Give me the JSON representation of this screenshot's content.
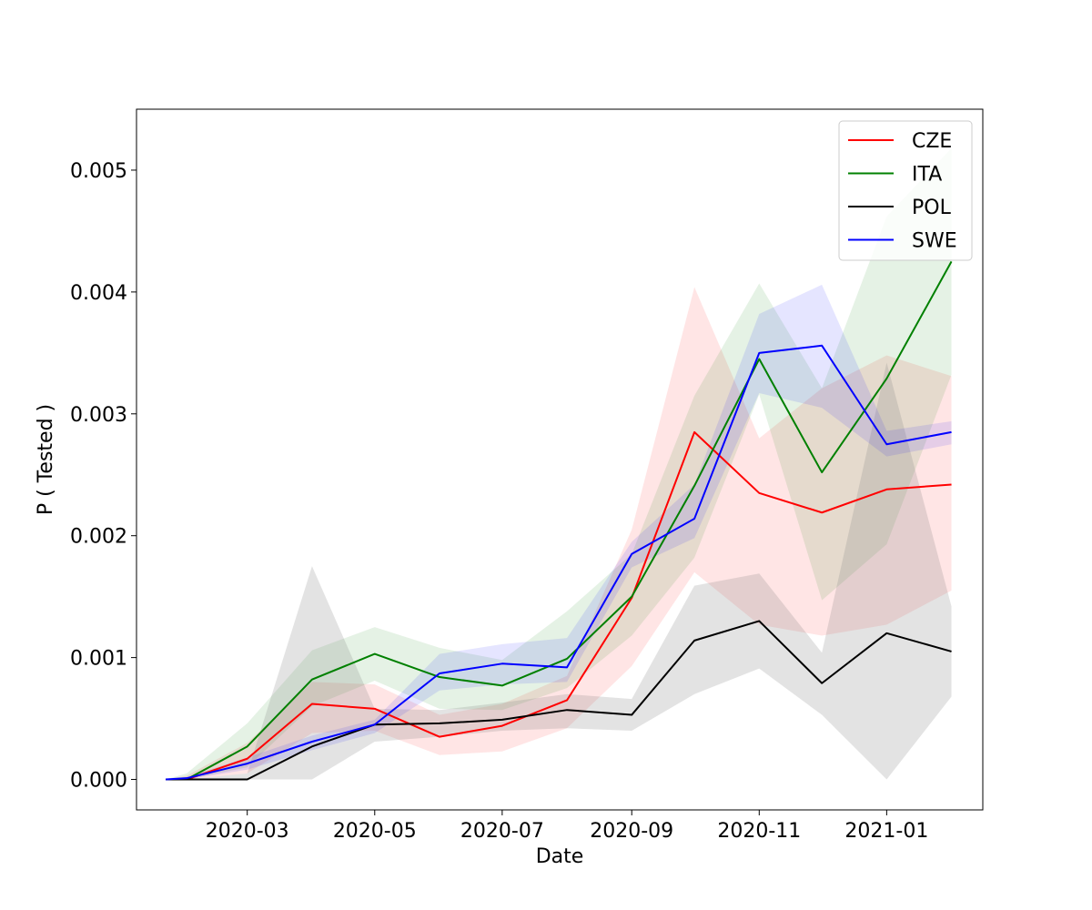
{
  "chart_data": {
    "type": "line",
    "title": "",
    "xlabel": "Date",
    "ylabel": "P ( Tested )",
    "x": [
      "2020-01-22",
      "2020-02-01",
      "2020-03-01",
      "2020-04-01",
      "2020-05-01",
      "2020-06-01",
      "2020-07-01",
      "2020-08-01",
      "2020-09-01",
      "2020-10-01",
      "2020-11-01",
      "2020-12-01",
      "2021-01-01",
      "2021-02-01"
    ],
    "x_ticks": [
      "2020-03",
      "2020-05",
      "2020-07",
      "2020-09",
      "2020-11",
      "2021-01"
    ],
    "y_ticks": [
      "0.000",
      "0.001",
      "0.002",
      "0.003",
      "0.004",
      "0.005"
    ],
    "ylim": [
      -0.00025,
      0.0055
    ],
    "legend_position": "top-right",
    "series": [
      {
        "name": "CZE",
        "color": "#ff0000",
        "band_color": "#ff0000",
        "values": [
          0.0,
          0.0,
          0.00017,
          0.00062,
          0.00058,
          0.00035,
          0.00044,
          0.00065,
          0.00149,
          0.00285,
          0.00235,
          0.00219,
          0.00238,
          0.00242
        ],
        "lower": [
          0.0,
          0.0,
          5e-05,
          0.00038,
          0.0004,
          0.0002,
          0.00023,
          0.00042,
          0.00093,
          0.0017,
          0.00127,
          0.00118,
          0.00127,
          0.00155
        ],
        "upper": [
          0.0,
          3e-05,
          0.0003,
          0.0008,
          0.00078,
          0.00053,
          0.00062,
          0.00085,
          0.00205,
          0.00404,
          0.0028,
          0.00321,
          0.00348,
          0.00331
        ]
      },
      {
        "name": "ITA",
        "color": "#008000",
        "band_color": "#008000",
        "values": [
          0.0,
          0.0,
          0.00027,
          0.00082,
          0.00103,
          0.00084,
          0.00077,
          0.00099,
          0.0015,
          0.00241,
          0.00345,
          0.00252,
          0.00329,
          0.00425
        ],
        "lower": [
          0.0,
          0.0,
          0.0001,
          0.0006,
          0.00081,
          0.00058,
          0.00057,
          0.00075,
          0.00118,
          0.00182,
          0.00316,
          0.00147,
          0.00193,
          0.00332
        ],
        "upper": [
          0.0,
          5e-05,
          0.00046,
          0.00106,
          0.00125,
          0.00108,
          0.00098,
          0.00138,
          0.00185,
          0.00315,
          0.00407,
          0.00321,
          0.00462,
          0.00518
        ]
      },
      {
        "name": "POL",
        "color": "#000000",
        "band_color": "#808080",
        "values": [
          0.0,
          0.0,
          0.0,
          0.00027,
          0.00045,
          0.00046,
          0.00049,
          0.00057,
          0.00053,
          0.00114,
          0.0013,
          0.00079,
          0.0012,
          0.00105
        ],
        "lower": [
          0.0,
          0.0,
          0.0,
          0.0,
          0.00031,
          0.00035,
          0.0004,
          0.00042,
          0.0004,
          0.0007,
          0.00091,
          0.00053,
          0.0,
          0.00068
        ],
        "upper": [
          0.0,
          0.0,
          5e-05,
          0.00175,
          0.00058,
          0.00057,
          0.00063,
          0.0007,
          0.00066,
          0.00159,
          0.00169,
          0.00104,
          0.00342,
          0.00142
        ]
      },
      {
        "name": "SWE",
        "color": "#0000ff",
        "band_color": "#0000ff",
        "values": [
          0.0,
          1e-05,
          0.00013,
          0.00031,
          0.00045,
          0.00087,
          0.00095,
          0.00092,
          0.00185,
          0.00214,
          0.0035,
          0.00356,
          0.00275,
          0.00285
        ],
        "lower": [
          0.0,
          0.0,
          8e-05,
          0.00024,
          0.00038,
          0.00073,
          0.00078,
          0.0008,
          0.00174,
          0.00198,
          0.00317,
          0.00305,
          0.00265,
          0.00275
        ],
        "upper": [
          0.0,
          2e-05,
          0.00018,
          0.00036,
          0.00049,
          0.00103,
          0.00111,
          0.00116,
          0.00195,
          0.00242,
          0.00382,
          0.00406,
          0.00286,
          0.00294
        ]
      }
    ]
  }
}
